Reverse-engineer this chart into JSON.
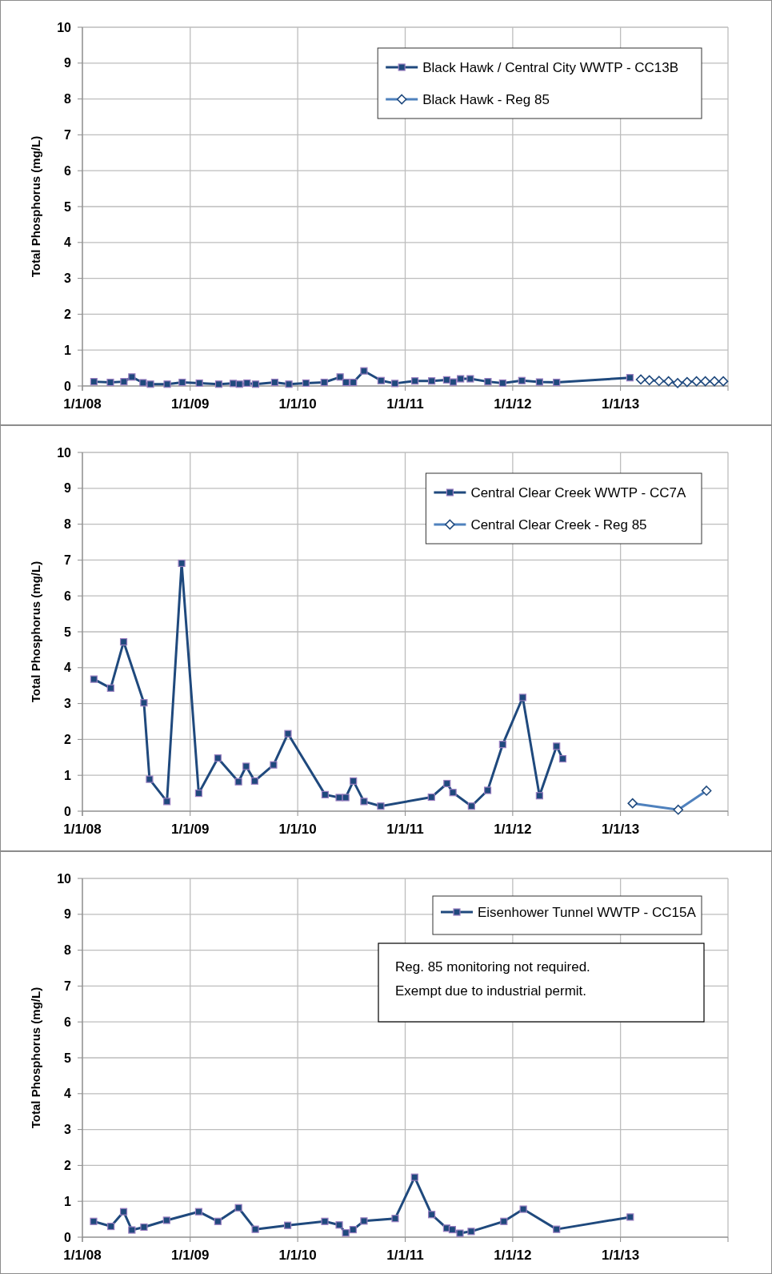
{
  "chart_data": [
    {
      "type": "line",
      "ylabel": "Total Phosphorus (mg/L)",
      "xlim": [
        "2008-01-01",
        "2014-01-01"
      ],
      "xticks": [
        {
          "value": "2008-01-01",
          "label": "1/1/08"
        },
        {
          "value": "2009-01-01",
          "label": "1/1/09"
        },
        {
          "value": "2010-01-01",
          "label": "1/1/10"
        },
        {
          "value": "2011-01-01",
          "label": "1/1/11"
        },
        {
          "value": "2012-01-01",
          "label": "1/1/12"
        },
        {
          "value": "2013-01-01",
          "label": "1/1/13"
        },
        {
          "value": "2014-01-01",
          "label": null
        }
      ],
      "ylim": [
        0,
        10
      ],
      "yticks": [
        0,
        1,
        2,
        3,
        4,
        5,
        6,
        7,
        8,
        9,
        10
      ],
      "grid": true,
      "legend": "top right",
      "series": [
        {
          "name": "Black Hawk / Central City WWTP - CC13B",
          "color": "#1f497d",
          "marker": "square",
          "x": [
            "2008-02-09",
            "2008-04-05",
            "2008-05-21",
            "2008-06-17",
            "2008-07-25",
            "2008-08-19",
            "2008-10-15",
            "2008-12-05",
            "2009-02-01",
            "2009-04-08",
            "2009-05-27",
            "2009-06-17",
            "2009-07-13",
            "2009-08-11",
            "2009-10-15",
            "2009-12-02",
            "2010-01-29",
            "2010-04-01",
            "2010-05-25",
            "2010-06-14",
            "2010-07-09",
            "2010-08-14",
            "2010-10-11",
            "2010-11-27",
            "2011-02-03",
            "2011-04-01",
            "2011-05-22",
            "2011-06-13",
            "2011-07-08",
            "2011-08-10",
            "2011-10-09",
            "2011-11-28",
            "2012-02-01",
            "2012-04-01",
            "2012-05-29",
            "2013-02-02"
          ],
          "values": [
            0.12,
            0.1,
            0.12,
            0.25,
            0.09,
            0.05,
            0.05,
            0.1,
            0.08,
            0.05,
            0.07,
            0.05,
            0.08,
            0.05,
            0.1,
            0.05,
            0.08,
            0.1,
            0.25,
            0.1,
            0.1,
            0.42,
            0.15,
            0.07,
            0.14,
            0.14,
            0.17,
            0.11,
            0.2,
            0.2,
            0.12,
            0.08,
            0.15,
            0.11,
            0.1,
            0.23
          ]
        },
        {
          "name": "Black Hawk - Reg 85",
          "color": "#4f81bd",
          "marker": "diamond",
          "x": [
            "2013-03-11",
            "2013-04-09",
            "2013-05-12",
            "2013-06-13",
            "2013-07-14",
            "2013-08-15",
            "2013-09-16",
            "2013-10-16",
            "2013-11-16",
            "2013-12-16"
          ],
          "values": [
            0.18,
            0.16,
            0.14,
            0.13,
            0.08,
            0.11,
            0.13,
            0.13,
            0.13,
            0.13
          ]
        }
      ]
    },
    {
      "type": "line",
      "ylabel": "Total Phosphorus (mg/L)",
      "xlim": [
        "2008-01-01",
        "2014-01-01"
      ],
      "xticks": [
        {
          "value": "2008-01-01",
          "label": "1/1/08"
        },
        {
          "value": "2009-01-01",
          "label": "1/1/09"
        },
        {
          "value": "2010-01-01",
          "label": "1/1/10"
        },
        {
          "value": "2011-01-01",
          "label": "1/1/11"
        },
        {
          "value": "2012-01-01",
          "label": "1/1/12"
        },
        {
          "value": "2013-01-01",
          "label": "1/1/13"
        },
        {
          "value": "2014-01-01",
          "label": null
        }
      ],
      "ylim": [
        0,
        10
      ],
      "yticks": [
        0,
        1,
        2,
        3,
        4,
        5,
        6,
        7,
        8,
        9,
        10
      ],
      "grid": true,
      "legend": "top right",
      "series": [
        {
          "name": "Central Clear Creek WWTP - CC7A",
          "color": "#1f497d",
          "marker": "square",
          "x": [
            "2008-02-09",
            "2008-04-06",
            "2008-05-20",
            "2008-07-28",
            "2008-08-16",
            "2008-10-14",
            "2008-12-03",
            "2009-01-30",
            "2009-04-05",
            "2009-06-14",
            "2009-07-10",
            "2009-08-08",
            "2009-10-11",
            "2009-11-29",
            "2010-04-04",
            "2010-05-22",
            "2010-06-13",
            "2010-07-09",
            "2010-08-14",
            "2010-10-10",
            "2011-03-31",
            "2011-05-23",
            "2011-06-12",
            "2011-08-14",
            "2011-10-08",
            "2011-11-28",
            "2012-02-04",
            "2012-04-01",
            "2012-05-29",
            "2012-06-19"
          ],
          "values": [
            3.68,
            3.43,
            4.72,
            3.02,
            0.89,
            0.27,
            6.91,
            0.5,
            1.48,
            0.82,
            1.25,
            0.84,
            1.29,
            2.16,
            0.46,
            0.38,
            0.38,
            0.84,
            0.27,
            0.14,
            0.39,
            0.77,
            0.52,
            0.14,
            0.58,
            1.86,
            3.17,
            0.43,
            1.81,
            1.46
          ]
        },
        {
          "name": "Central Clear Creek - Reg 85",
          "color": "#4f81bd",
          "marker": "diamond",
          "x": [
            "2013-02-11",
            "2013-07-16",
            "2013-10-20"
          ],
          "values": [
            0.22,
            0.04,
            0.57
          ]
        }
      ]
    },
    {
      "type": "line",
      "ylabel": "Total Phosphorus (mg/L)",
      "xlim": [
        "2008-01-01",
        "2014-01-01"
      ],
      "xticks": [
        {
          "value": "2008-01-01",
          "label": "1/1/08"
        },
        {
          "value": "2009-01-01",
          "label": "1/1/09"
        },
        {
          "value": "2010-01-01",
          "label": "1/1/10"
        },
        {
          "value": "2011-01-01",
          "label": "1/1/11"
        },
        {
          "value": "2012-01-01",
          "label": "1/1/12"
        },
        {
          "value": "2013-01-01",
          "label": "1/1/13"
        },
        {
          "value": "2014-01-01",
          "label": null
        }
      ],
      "ylim": [
        0,
        10
      ],
      "yticks": [
        0,
        1,
        2,
        3,
        4,
        5,
        6,
        7,
        8,
        9,
        10
      ],
      "grid": true,
      "legend": "top right",
      "annotations": [
        "Reg. 85 monitoring not required.",
        "Exempt due to industrial permit."
      ],
      "series": [
        {
          "name": "Eisenhower Tunnel WWTP - CC15A",
          "color": "#1f497d",
          "marker": "square",
          "x": [
            "2008-02-08",
            "2008-04-07",
            "2008-05-20",
            "2008-06-17",
            "2008-07-28",
            "2008-10-13",
            "2009-01-30",
            "2009-04-05",
            "2009-06-14",
            "2009-08-10",
            "2009-11-28",
            "2010-04-03",
            "2010-05-22",
            "2010-06-13",
            "2010-07-08",
            "2010-08-14",
            "2010-11-28",
            "2011-02-02",
            "2011-04-01",
            "2011-05-22",
            "2011-06-10",
            "2011-07-06",
            "2011-08-13",
            "2011-12-02",
            "2012-02-06",
            "2012-05-29",
            "2013-02-03"
          ],
          "values": [
            0.44,
            0.3,
            0.71,
            0.2,
            0.28,
            0.47,
            0.71,
            0.44,
            0.82,
            0.22,
            0.33,
            0.44,
            0.34,
            0.12,
            0.21,
            0.45,
            0.52,
            1.67,
            0.63,
            0.25,
            0.21,
            0.11,
            0.16,
            0.44,
            0.78,
            0.22,
            0.56
          ]
        }
      ]
    }
  ]
}
